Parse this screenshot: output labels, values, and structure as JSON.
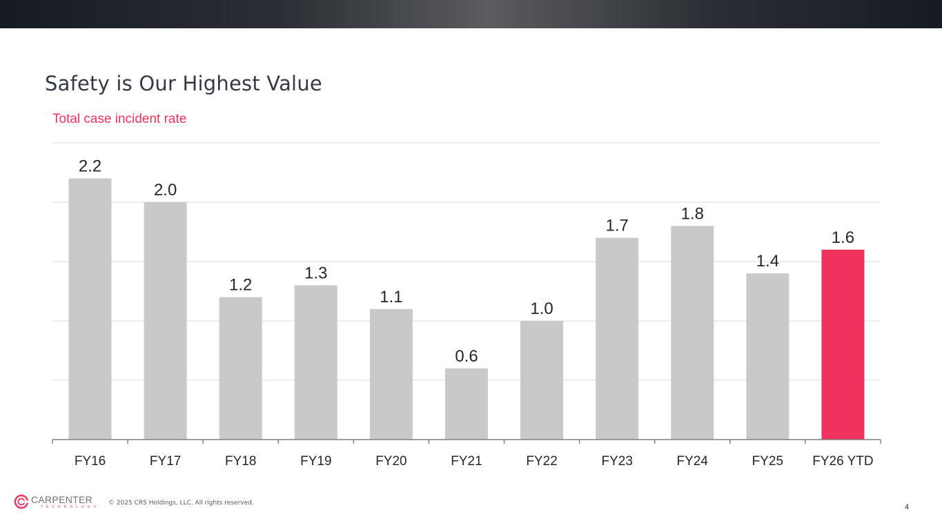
{
  "slide": {
    "title": "Safety is Our Highest Value",
    "subtitle": "Total case incident rate",
    "page_number": "4"
  },
  "footer": {
    "logo_name": "CARPENTER",
    "logo_sub": "TECHNOLOGY",
    "copyright": "© 2025 CRS Holdings, LLC. All rights reserved."
  },
  "colors": {
    "bar": "#c9c9c8",
    "highlight": "#f0325f",
    "accent": "#f0325f",
    "gridline": "#d9d9d9",
    "axis": "#7f7f7f",
    "text": "#262626"
  },
  "chart_data": {
    "type": "bar",
    "title": "Total case incident rate",
    "categories": [
      "FY16",
      "FY17",
      "FY18",
      "FY19",
      "FY20",
      "FY21",
      "FY22",
      "FY23",
      "FY24",
      "FY25",
      "FY26 YTD"
    ],
    "values": [
      2.2,
      2.0,
      1.2,
      1.3,
      1.1,
      0.6,
      1.0,
      1.7,
      1.8,
      1.4,
      1.6
    ],
    "data_labels": [
      "2.2",
      "2.0",
      "1.2",
      "1.3",
      "1.1",
      "0.6",
      "1.0",
      "1.7",
      "1.8",
      "1.4",
      "1.6"
    ],
    "highlight_category": "FY26 YTD",
    "ylim": [
      0,
      2.5
    ],
    "gridlines": [
      0.5,
      1.0,
      1.5,
      2.0,
      2.5
    ],
    "y_tick_labels_shown": false,
    "legend": "none"
  }
}
